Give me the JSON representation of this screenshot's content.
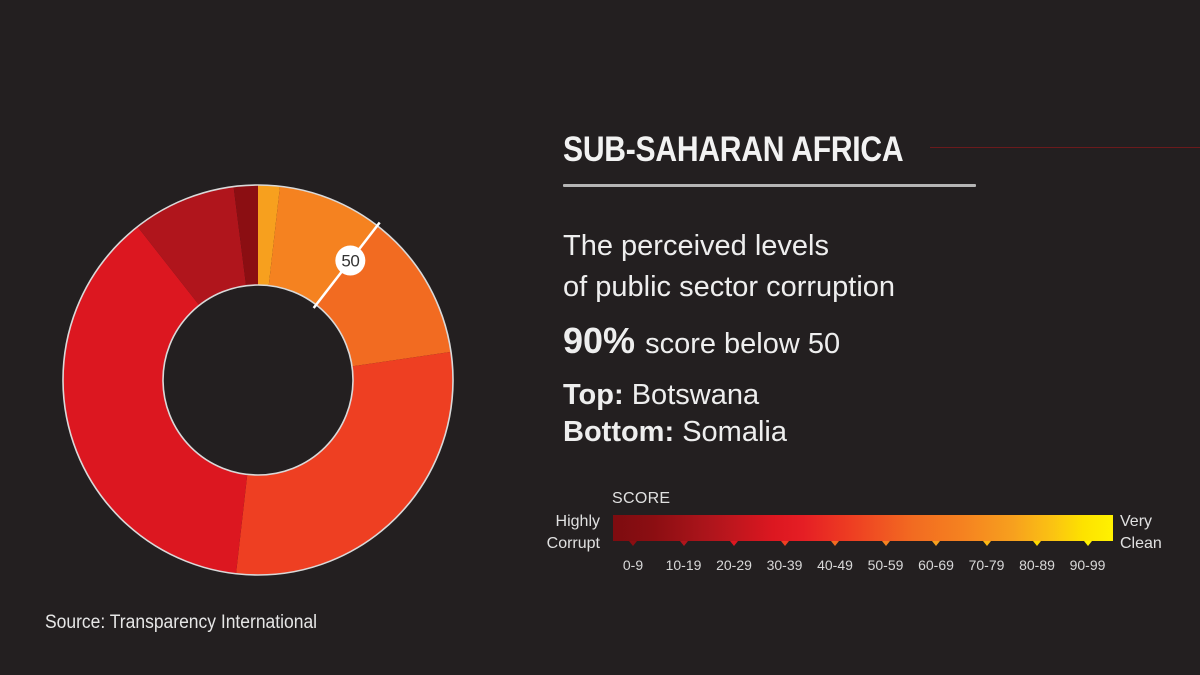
{
  "header": {
    "title": "SUB-SAHARAN AFRICA",
    "accent_line_color": "#6b1a1c"
  },
  "description": {
    "line1": "The perceived levels",
    "line2": "of public sector corruption"
  },
  "stat": {
    "value": "90%",
    "text": "score below 50"
  },
  "extremes": {
    "top_label": "Top:",
    "top_value": "Botswana",
    "bottom_label": "Bottom:",
    "bottom_value": "Somalia"
  },
  "legend": {
    "title": "SCORE",
    "left_line1": "Highly",
    "left_line2": "Corrupt",
    "right_line1": "Very",
    "right_line2": "Clean",
    "ranges": [
      "0-9",
      "10-19",
      "20-29",
      "30-39",
      "40-49",
      "50-59",
      "60-69",
      "70-79",
      "80-89",
      "90-99"
    ],
    "range_colors": [
      "#8b0e12",
      "#b0151c",
      "#dc1720",
      "#ee3f22",
      "#f26b21",
      "#f58220",
      "#f7a01e",
      "#fbb814",
      "#fdd800",
      "#fff200"
    ]
  },
  "source": "Source: Transparency International",
  "marker": {
    "label": "50"
  },
  "chart_data": {
    "type": "pie",
    "variant": "donut",
    "title": "SUB-SAHARAN AFRICA",
    "subtitle": "The perceived levels of public sector corruption",
    "annotation": "90% score below 50",
    "start_angle_deg": 0,
    "direction": "clockwise",
    "categories": [
      "60-69",
      "50-59",
      "40-49",
      "30-39",
      "20-29",
      "10-19",
      "0-9"
    ],
    "values": [
      1.8,
      8.7,
      12.2,
      29.1,
      37.6,
      8.6,
      2.0
    ],
    "unit": "% of countries (estimated from slice angles)",
    "colors": [
      "#f7a01e",
      "#f58220",
      "#f26b21",
      "#ee3f22",
      "#dc1720",
      "#b0151c",
      "#8b0e12"
    ],
    "threshold_marker": {
      "label": "50",
      "angle_deg": 37.7
    },
    "legend_position": "right",
    "source": "Transparency International"
  }
}
